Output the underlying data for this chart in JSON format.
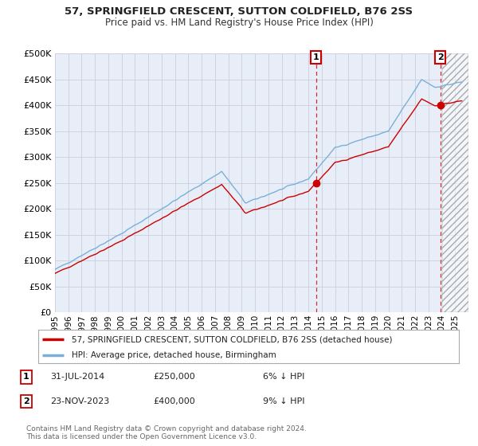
{
  "title1": "57, SPRINGFIELD CRESCENT, SUTTON COLDFIELD, B76 2SS",
  "title2": "Price paid vs. HM Land Registry's House Price Index (HPI)",
  "background_color": "#ffffff",
  "grid_color": "#ccccdd",
  "plot_bg": "#e8eef8",
  "hpi_color": "#7ab0d8",
  "price_color": "#cc0000",
  "sale1_date": 2014.58,
  "sale1_price": 250000,
  "sale2_date": 2023.9,
  "sale2_price": 400000,
  "xmin": 1995,
  "xmax": 2026,
  "ymin": 0,
  "ymax": 500000,
  "yticks": [
    0,
    50000,
    100000,
    150000,
    200000,
    250000,
    300000,
    350000,
    400000,
    450000,
    500000
  ],
  "xticks": [
    1995,
    1996,
    1997,
    1998,
    1999,
    2000,
    2001,
    2002,
    2003,
    2004,
    2005,
    2006,
    2007,
    2008,
    2009,
    2010,
    2011,
    2012,
    2013,
    2014,
    2015,
    2016,
    2017,
    2018,
    2019,
    2020,
    2021,
    2022,
    2023,
    2024,
    2025
  ],
  "legend_label1": "57, SPRINGFIELD CRESCENT, SUTTON COLDFIELD, B76 2SS (detached house)",
  "legend_label2": "HPI: Average price, detached house, Birmingham",
  "annotation1_label": "1",
  "annotation1_date_str": "31-JUL-2014",
  "annotation1_price_str": "£250,000",
  "annotation1_pct": "6% ↓ HPI",
  "annotation2_label": "2",
  "annotation2_date_str": "23-NOV-2023",
  "annotation2_price_str": "£400,000",
  "annotation2_pct": "9% ↓ HPI",
  "footer": "Contains HM Land Registry data © Crown copyright and database right 2024.\nThis data is licensed under the Open Government Licence v3.0."
}
